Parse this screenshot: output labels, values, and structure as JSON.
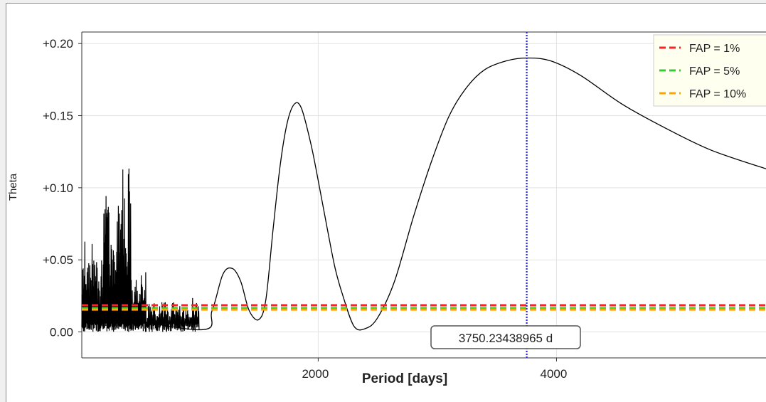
{
  "chart_data": {
    "type": "line",
    "xlabel": "Period [days]",
    "ylabel": "Theta",
    "xlim": [
      16,
      5800
    ],
    "ylim": [
      -0.018,
      0.208
    ],
    "x_ticks": [
      2000,
      4000
    ],
    "x_tick_labels": [
      "2000",
      "4000"
    ],
    "y_ticks": [
      0,
      0.05,
      0.1,
      0.15,
      0.2
    ],
    "y_tick_labels": [
      "0.00",
      "+0.05",
      "+0.10",
      "+0.15",
      "+0.20"
    ],
    "grid": true,
    "legend_position": "top-right",
    "series": [
      {
        "style": "solid",
        "color": "#000000",
        "x": [
          50,
          1000,
          1110,
          1200,
          1280,
          1350,
          1420,
          1500,
          1560,
          1620,
          1680,
          1740,
          1800,
          1860,
          1940,
          2000,
          2080,
          2140,
          2200,
          2300,
          2400,
          2500,
          2640,
          2800,
          2950,
          3100,
          3250,
          3400,
          3580,
          3750,
          3950,
          4200,
          4550,
          4900,
          5300,
          5800
        ],
        "y": [
          0.015,
          0.0015,
          0.015,
          0.04,
          0.044,
          0.035,
          0.015,
          0.0085,
          0.022,
          0.07,
          0.115,
          0.145,
          0.158,
          0.155,
          0.13,
          0.105,
          0.07,
          0.045,
          0.027,
          0.004,
          0.0025,
          0.01,
          0.035,
          0.08,
          0.118,
          0.15,
          0.17,
          0.182,
          0.188,
          0.19,
          0.188,
          0.178,
          0.158,
          0.142,
          0.126,
          0.112
        ]
      }
    ],
    "noisy_segment": {
      "x": [
        16,
        1000
      ],
      "y_range": [
        0.0,
        0.118
      ]
    },
    "fap_lines": [
      {
        "label": "FAP = 1%",
        "value": 0.0185,
        "color": "#ff2020"
      },
      {
        "label": "FAP = 5%",
        "value": 0.0165,
        "color": "#33cc33"
      },
      {
        "label": "FAP = 10%",
        "value": 0.0155,
        "color": "#ffa500"
      }
    ],
    "cursor": {
      "x": 3750.23438965,
      "label": "3750.23438965 d",
      "color": "#2222ff"
    }
  }
}
